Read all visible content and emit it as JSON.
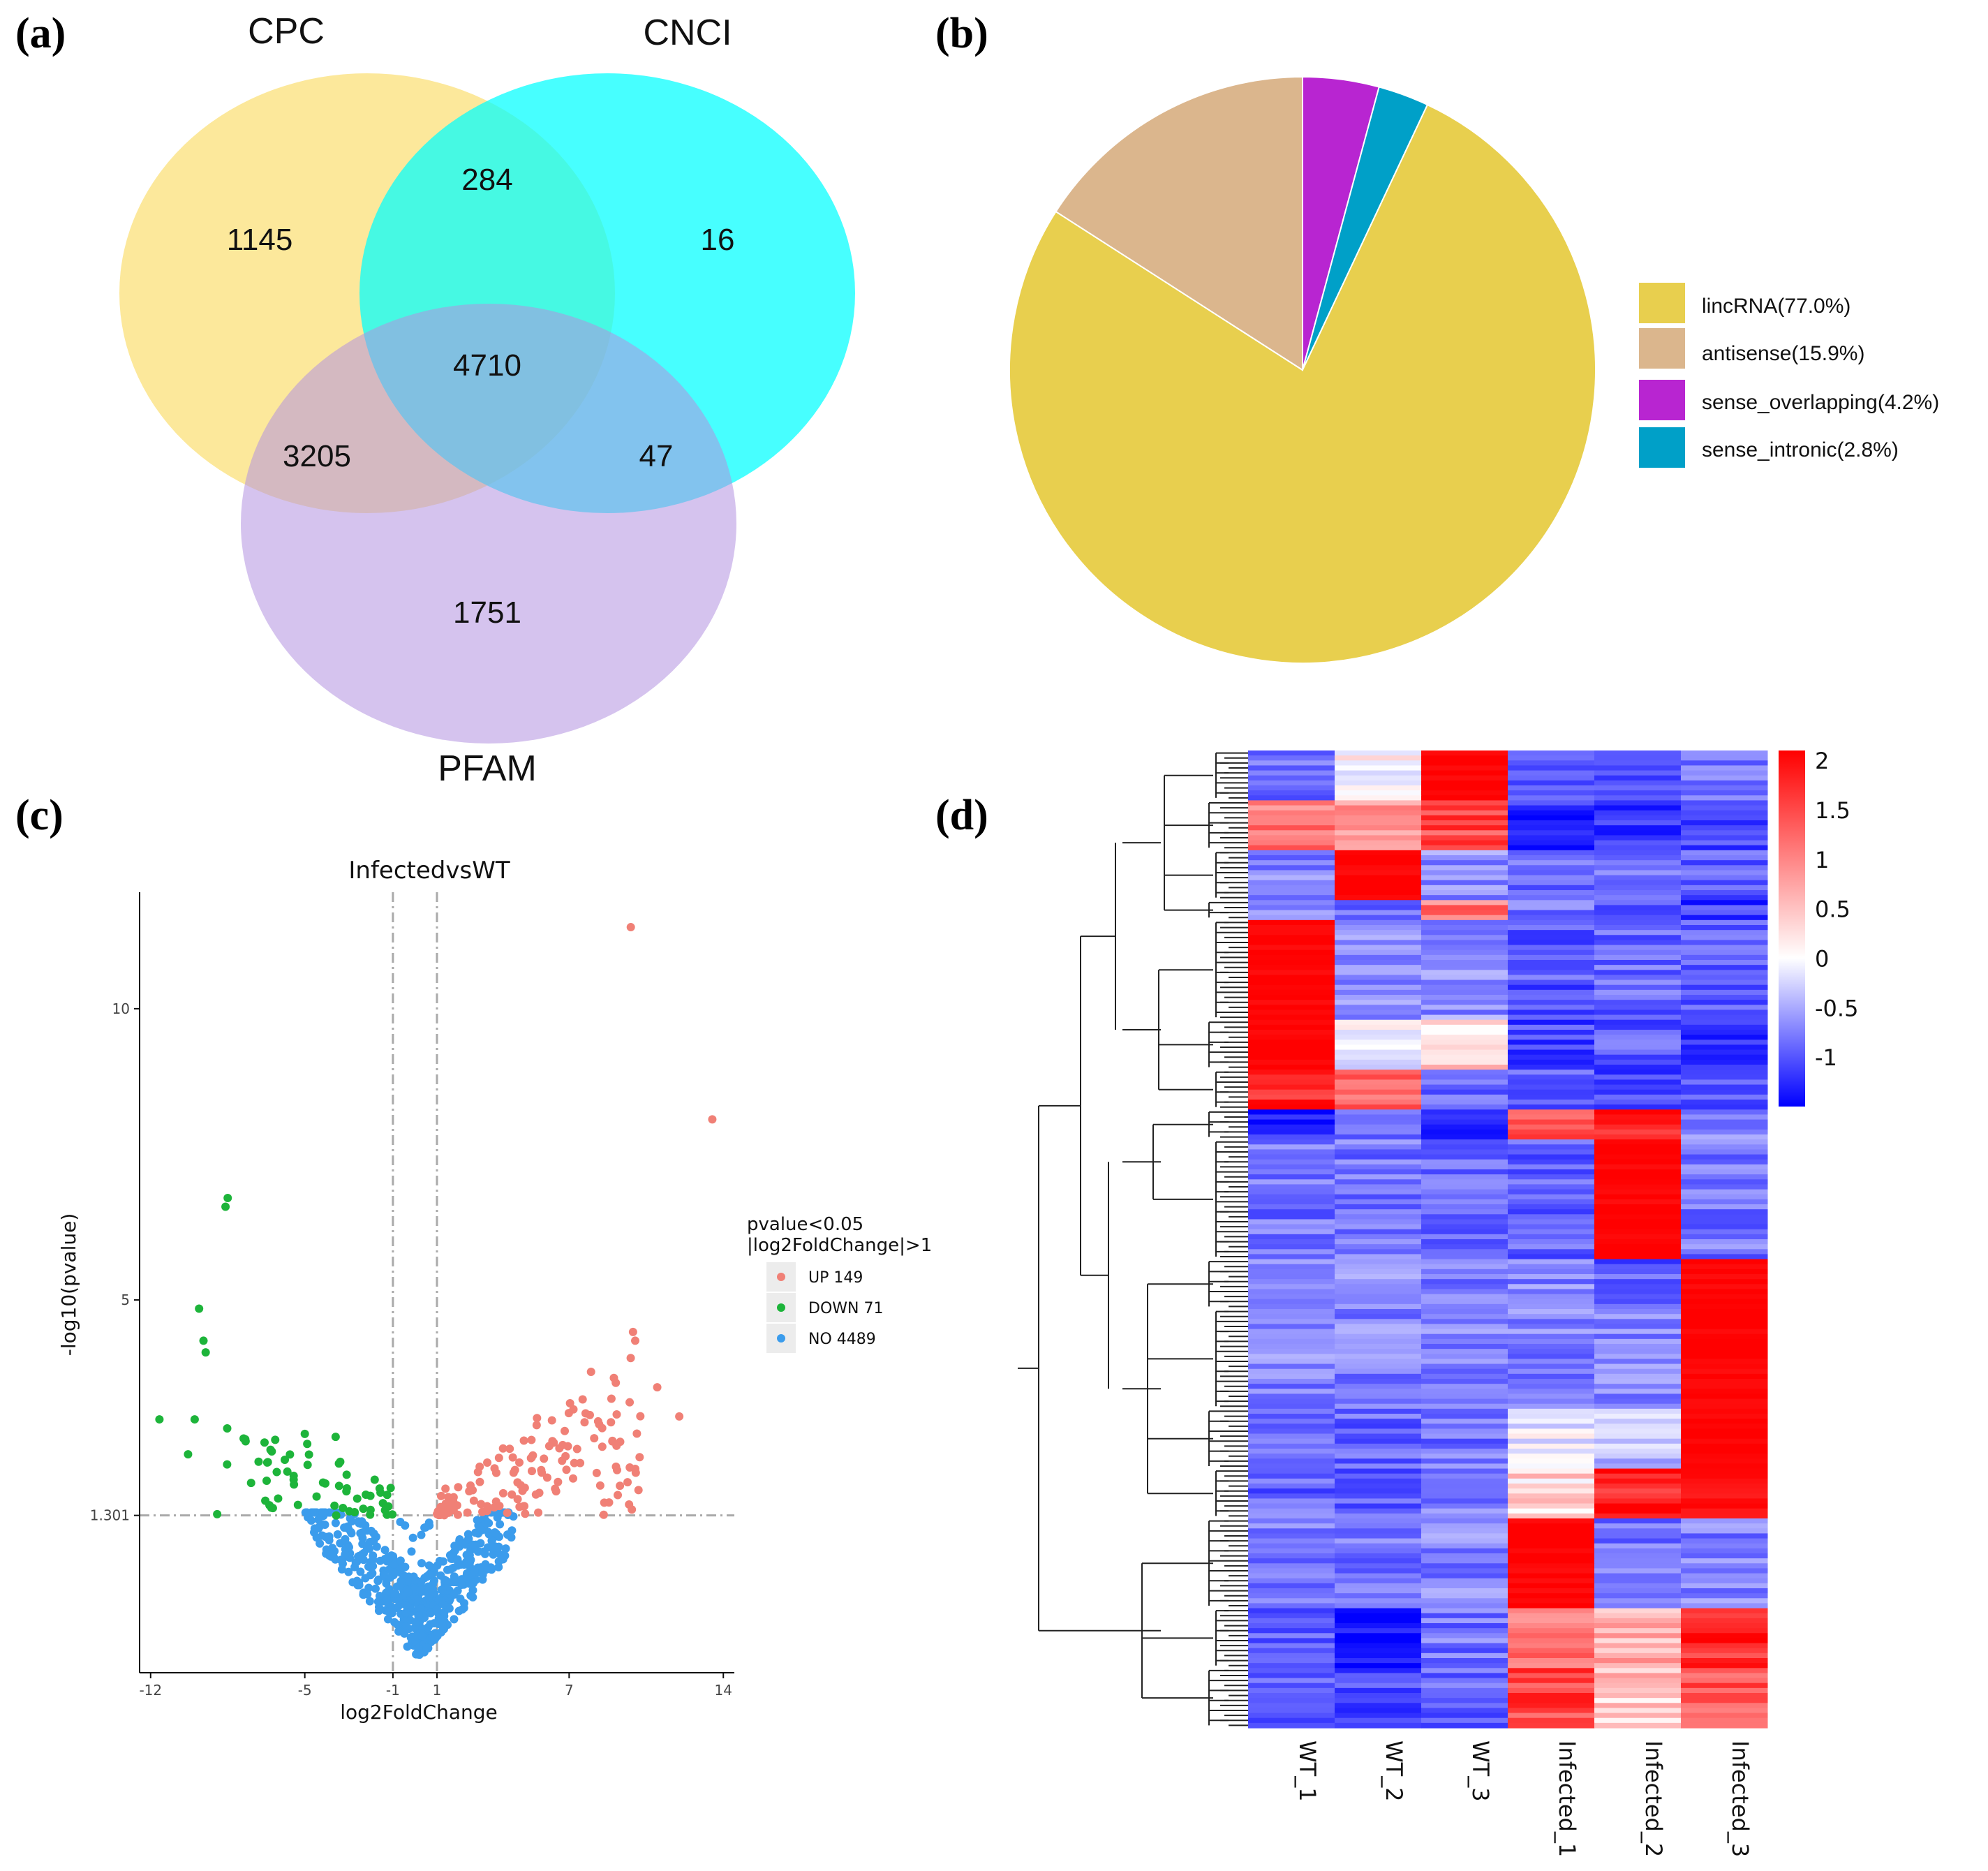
{
  "colors": {
    "venn_cpc": "#fbe079",
    "venn_cnci": "#00ffff",
    "venn_pfam": "#c5abe8",
    "pie": [
      "#e8cf4e",
      "#dbb68d",
      "#b825d1",
      "#00a0c8"
    ],
    "up": "#f08076",
    "down": "#1db43a",
    "no": "#3b9cec",
    "heat_low": "#0000ff",
    "heat_mid": "#ffffff",
    "heat_high": "#ff0000"
  },
  "panels": {
    "a": "(a)",
    "b": "(b)",
    "c": "(c)",
    "d": "(d)"
  },
  "chart_data": [
    {
      "type": "venn",
      "sets": [
        "CPC",
        "CNCI",
        "PFAM"
      ],
      "regions": {
        "CPC_only": "1145",
        "CNCI_only": "16",
        "PFAM_only": "1751",
        "CPC_CNCI": "284",
        "CPC_PFAM": "3205",
        "CNCI_PFAM": "47",
        "all": "4710"
      }
    },
    {
      "type": "pie",
      "labels": [
        "lincRNA(77.0%)",
        "antisense(15.9%)",
        "sense_overlapping(4.2%)",
        "sense_intronic(2.8%)"
      ],
      "values": [
        77.0,
        15.9,
        4.2,
        2.8
      ]
    },
    {
      "type": "scatter",
      "title": "InfectedvsWT",
      "xlabel": "log2FoldChange",
      "ylabel": "-log10(pvalue)",
      "xticks": [
        "-12",
        "-5",
        "-1",
        "1",
        "7",
        "14"
      ],
      "xtick_values": [
        -12,
        -5,
        -1,
        1,
        7,
        14
      ],
      "yticks": [
        "1.301",
        "5",
        "10"
      ],
      "ytick_values": [
        1.301,
        5,
        10
      ],
      "xlim": [
        -12.5,
        14.5
      ],
      "ylim": [
        -1.4,
        12.0
      ],
      "legend_title": [
        "pvalue<0.05",
        "|log2FoldChange|>1"
      ],
      "legend": [
        "UP 149",
        "DOWN 71",
        "NO 4489"
      ],
      "up_points": [
        [
          9.8,
          11.4
        ],
        [
          13.5,
          8.1
        ],
        [
          9.9,
          4.45
        ],
        [
          11.0,
          3.5
        ],
        [
          10.0,
          4.3
        ],
        [
          12.0,
          3.0
        ],
        [
          8.5,
          2.8
        ],
        [
          7.7,
          2.9
        ],
        [
          6.8,
          2.75
        ],
        [
          4.0,
          2.45
        ],
        [
          6.3,
          2.55
        ],
        [
          7.5,
          2.2
        ],
        [
          8.9,
          2.9
        ],
        [
          10.2,
          2.3
        ],
        [
          10.0,
          2.1
        ]
      ],
      "down_points": [
        [
          -8.6,
          6.6
        ],
        [
          -8.5,
          6.75
        ],
        [
          -11.6,
          2.95
        ],
        [
          -9.8,
          4.85
        ],
        [
          -9.6,
          4.3
        ],
        [
          -9.5,
          4.1
        ],
        [
          -10.0,
          2.95
        ],
        [
          -10.3,
          2.35
        ],
        [
          -6.5,
          2.4
        ],
        [
          -5.0,
          2.7
        ],
        [
          -3.6,
          2.65
        ],
        [
          -3.1,
          2.0
        ]
      ],
      "up_count": 149,
      "down_count": 71,
      "no_count": 4489
    },
    {
      "type": "heatmap",
      "columns": [
        "WT_1",
        "WT_2",
        "WT_3",
        "Infected_1",
        "Infected_2",
        "Infected_3"
      ],
      "colorbar_ticks": [
        "2",
        "1.5",
        "1",
        "0.5",
        "0",
        "-0.5",
        "-1"
      ],
      "colorbar_values": [
        2,
        1.5,
        1,
        0.5,
        0,
        -0.5,
        -1
      ],
      "colorbar_range": [
        -1.5,
        2.1
      ]
    }
  ]
}
